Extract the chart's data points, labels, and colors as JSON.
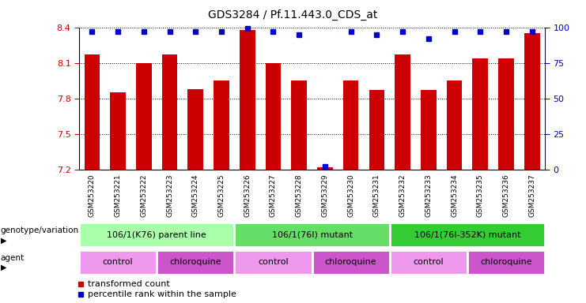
{
  "title": "GDS3284 / Pf.11.443.0_CDS_at",
  "samples": [
    "GSM253220",
    "GSM253221",
    "GSM253222",
    "GSM253223",
    "GSM253224",
    "GSM253225",
    "GSM253226",
    "GSM253227",
    "GSM253228",
    "GSM253229",
    "GSM253230",
    "GSM253231",
    "GSM253232",
    "GSM253233",
    "GSM253234",
    "GSM253235",
    "GSM253236",
    "GSM253237"
  ],
  "bar_values": [
    8.17,
    7.85,
    8.1,
    8.17,
    7.88,
    7.95,
    8.38,
    8.1,
    7.95,
    7.22,
    7.95,
    7.87,
    8.17,
    7.87,
    7.95,
    8.14,
    8.14,
    8.35
  ],
  "percentile_values": [
    97,
    97,
    97,
    97,
    97,
    97,
    99,
    97,
    95,
    2,
    97,
    95,
    97,
    92,
    97,
    97,
    97,
    97
  ],
  "ylim_left": [
    7.2,
    8.4
  ],
  "ylim_right": [
    0,
    100
  ],
  "bar_color": "#cc0000",
  "dot_color": "#0000cc",
  "yticks_left": [
    7.2,
    7.5,
    7.8,
    8.1,
    8.4
  ],
  "yticks_right": [
    0,
    25,
    50,
    75,
    100
  ],
  "bar_width": 0.6,
  "genotype_groups": [
    {
      "label": "106/1(K76) parent line",
      "start": 0,
      "end": 6,
      "color": "#aaffaa"
    },
    {
      "label": "106/1(76I) mutant",
      "start": 6,
      "end": 12,
      "color": "#66dd66"
    },
    {
      "label": "106/1(76I-352K) mutant",
      "start": 12,
      "end": 18,
      "color": "#33cc33"
    }
  ],
  "agent_groups": [
    {
      "label": "control",
      "start": 0,
      "end": 3,
      "color": "#ee99ee"
    },
    {
      "label": "chloroquine",
      "start": 3,
      "end": 6,
      "color": "#cc55cc"
    },
    {
      "label": "control",
      "start": 6,
      "end": 9,
      "color": "#ee99ee"
    },
    {
      "label": "chloroquine",
      "start": 9,
      "end": 12,
      "color": "#cc55cc"
    },
    {
      "label": "control",
      "start": 12,
      "end": 15,
      "color": "#ee99ee"
    },
    {
      "label": "chloroquine",
      "start": 15,
      "end": 18,
      "color": "#cc55cc"
    }
  ],
  "legend_items": [
    {
      "label": "transformed count",
      "color": "#cc0000"
    },
    {
      "label": "percentile rank within the sample",
      "color": "#0000cc"
    }
  ],
  "tick_label_color": "#cc0000",
  "right_tick_color": "#0000cc",
  "xtick_bg_color": "#d0d0d0"
}
